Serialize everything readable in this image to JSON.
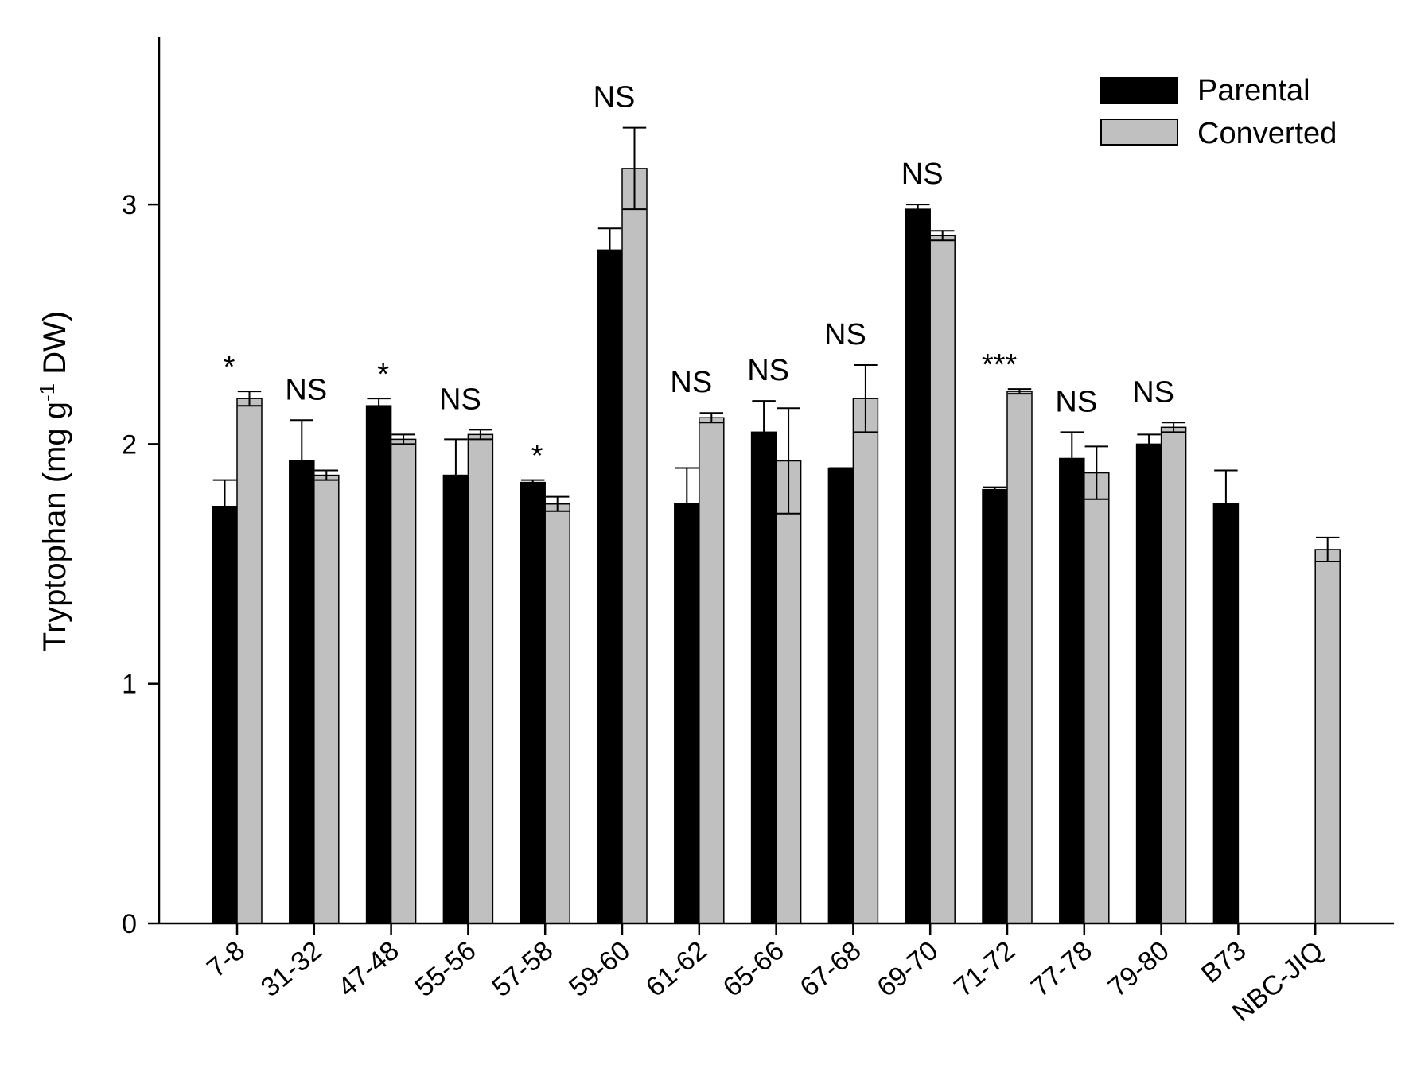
{
  "chart_data": {
    "type": "bar",
    "ylabel_main": "Tryptophan (mg g",
    "ylabel_sup": "-1",
    "ylabel_tail": " DW)",
    "xlabel": "",
    "ylim": [
      0,
      3.7
    ],
    "yticks": [
      "0",
      "1",
      "2",
      "3"
    ],
    "ytick_values": [
      0,
      1,
      2,
      3
    ],
    "legend_position": "top-right",
    "categories": [
      "7-8",
      "31-32",
      "47-48",
      "55-56",
      "57-58",
      "59-60",
      "61-62",
      "65-66",
      "67-68",
      "69-70",
      "71-72",
      "77-78",
      "79-80",
      "B73",
      "NBC-JIQ"
    ],
    "series": [
      {
        "name": "Parental",
        "color": "#000000",
        "values": [
          1.74,
          1.93,
          2.16,
          1.87,
          1.84,
          2.81,
          1.75,
          2.05,
          1.9,
          2.98,
          1.81,
          1.94,
          2.0,
          1.75,
          null
        ],
        "errors": [
          0.11,
          0.17,
          0.03,
          0.15,
          0.01,
          0.09,
          0.15,
          0.13,
          0.0,
          0.02,
          0.01,
          0.11,
          0.04,
          0.14,
          null
        ]
      },
      {
        "name": "Converted",
        "color": "#c0c0c0",
        "values": [
          2.19,
          1.87,
          2.02,
          2.04,
          1.75,
          3.15,
          2.11,
          1.93,
          2.19,
          2.87,
          2.22,
          1.88,
          2.07,
          null,
          1.56
        ],
        "errors": [
          0.03,
          0.02,
          0.02,
          0.02,
          0.03,
          0.17,
          0.02,
          0.22,
          0.14,
          0.02,
          0.01,
          0.11,
          0.02,
          null,
          0.05
        ]
      }
    ],
    "annotations": [
      "*",
      "NS",
      "*",
      "NS",
      "*",
      "NS",
      "NS",
      "NS",
      "NS",
      "NS",
      "***",
      "NS",
      "NS",
      "",
      ""
    ]
  }
}
